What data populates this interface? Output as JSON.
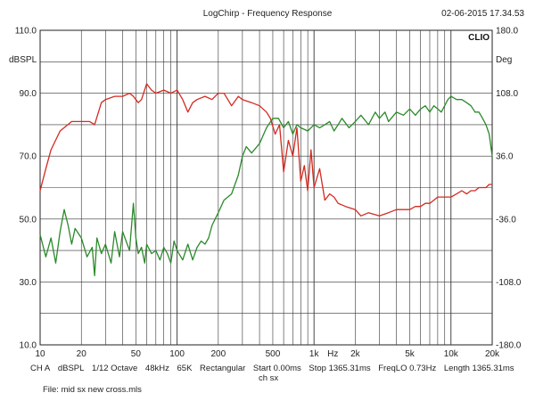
{
  "header": {
    "title": "LogChirp - Frequency Response",
    "timestamp": "02-06-2015 17.34.53",
    "brand": "CLIO"
  },
  "footer": {
    "params": [
      "CH A",
      "dBSPL",
      "1/12 Octave",
      "48kHz",
      "65K",
      "Rectangular",
      "Start 0.00ms",
      "Stop 1365.31ms",
      "FreqLO 0.73Hz",
      "Length 1365.31ms"
    ],
    "channel2": "ch sx",
    "file": "File: mid sx new cross.mls"
  },
  "chart_data": {
    "type": "line",
    "x_scale": "log",
    "xlim": [
      10,
      20000
    ],
    "ylim": [
      10,
      110
    ],
    "y2lim": [
      -180,
      180
    ],
    "ylabel": "dBSPL",
    "y2label": "Deg",
    "grid": true,
    "xtick_labels": [
      "10",
      "20",
      "50",
      "100",
      "200",
      "500",
      "1k",
      "Hz",
      "2k",
      "5k",
      "10k",
      "20k"
    ],
    "xtick_values": [
      10,
      20,
      50,
      100,
      200,
      500,
      1000,
      null,
      2000,
      5000,
      10000,
      20000
    ],
    "ytick_labels": [
      "10.0",
      "30.0",
      "50.0",
      "70.0",
      "90.0",
      "110.0"
    ],
    "ytick_values": [
      10,
      30,
      50,
      70,
      90,
      110
    ],
    "y2tick_labels": [
      "-180.0",
      "-108.0",
      "-36.0",
      "36.0",
      "108.0",
      "180.0"
    ],
    "y2tick_values": [
      -180,
      -108,
      -36,
      36,
      108,
      180
    ],
    "colors": {
      "magnitude": "#d42a20",
      "phase": "#2a8a2a",
      "grid": "#333333"
    },
    "series": [
      {
        "axis": "left",
        "x": [
          10,
          11,
          12,
          14,
          17,
          20,
          23,
          25,
          28,
          30,
          35,
          40,
          45,
          48,
          52,
          55,
          60,
          65,
          70,
          80,
          90,
          100,
          110,
          120,
          130,
          140,
          160,
          180,
          200,
          220,
          250,
          280,
          300,
          350,
          400,
          450,
          480,
          520,
          560,
          600,
          650,
          700,
          750,
          800,
          850,
          900,
          950,
          1000,
          1100,
          1200,
          1300,
          1400,
          1500,
          1700,
          2000,
          2200,
          2500,
          3000,
          3500,
          4000,
          4500,
          5000,
          5500,
          6000,
          6500,
          7000,
          7500,
          8000,
          8500,
          9000,
          10000,
          11000,
          12000,
          13000,
          14000,
          15000,
          16000,
          17000,
          18000,
          19000,
          20000
        ],
        "y": [
          59,
          66,
          72,
          78,
          81,
          81,
          81,
          80,
          87,
          88,
          89,
          89,
          90,
          89,
          87,
          88,
          93,
          91,
          90,
          91,
          90,
          91,
          88,
          84,
          87,
          88,
          89,
          88,
          90,
          90,
          86,
          89,
          88,
          87,
          86,
          84,
          82,
          77,
          80,
          65,
          75,
          70,
          79,
          62,
          67,
          59,
          72,
          60,
          66,
          56,
          58,
          57,
          55,
          54,
          53,
          51,
          52,
          51,
          52,
          53,
          53,
          53,
          54,
          54,
          55,
          55,
          56,
          57,
          57,
          57,
          57,
          58,
          59,
          58,
          59,
          59,
          60,
          60,
          60,
          61,
          61
        ]
      },
      {
        "axis": "left",
        "x": [
          10,
          11,
          12,
          13,
          14,
          15,
          16,
          17,
          18,
          20,
          22,
          24,
          25,
          26,
          28,
          30,
          33,
          35,
          38,
          40,
          45,
          48,
          50,
          52,
          55,
          58,
          60,
          65,
          70,
          75,
          80,
          85,
          90,
          95,
          100,
          110,
          120,
          130,
          140,
          150,
          160,
          170,
          180,
          200,
          220,
          250,
          280,
          300,
          320,
          350,
          400,
          450,
          500,
          550,
          600,
          650,
          700,
          750,
          800,
          900,
          1000,
          1100,
          1200,
          1300,
          1400,
          1500,
          1600,
          1800,
          2000,
          2200,
          2500,
          2800,
          3000,
          3300,
          3500,
          4000,
          4500,
          5000,
          5500,
          6000,
          6500,
          7000,
          7500,
          8000,
          8500,
          9000,
          9500,
          10000,
          11000,
          12000,
          13000,
          14000,
          15000,
          16000,
          17000,
          18000,
          19000,
          20000
        ],
        "y": [
          45,
          38,
          44,
          36,
          46,
          53,
          48,
          42,
          47,
          44,
          38,
          41,
          32,
          44,
          39,
          42,
          36,
          46,
          38,
          46,
          40,
          55,
          44,
          39,
          41,
          36,
          42,
          39,
          40,
          37,
          41,
          39,
          36,
          43,
          40,
          37,
          42,
          37,
          41,
          43,
          42,
          44,
          48,
          52,
          56,
          58,
          64,
          70,
          73,
          71,
          74,
          79,
          82,
          82,
          79,
          81,
          77,
          80,
          79,
          78,
          80,
          79,
          80,
          81,
          78,
          80,
          82,
          79,
          81,
          83,
          80,
          84,
          82,
          84,
          81,
          84,
          83,
          85,
          83,
          85,
          86,
          84,
          86,
          85,
          84,
          86,
          88,
          89,
          88,
          88,
          87,
          86,
          84,
          84,
          82,
          80,
          77,
          70
        ]
      }
    ]
  }
}
